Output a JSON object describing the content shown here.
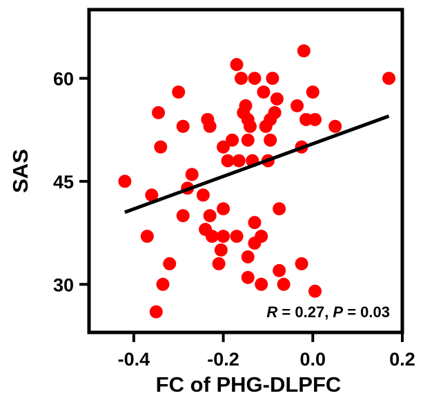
{
  "chart_data": {
    "type": "scatter",
    "xlabel": "FC of PHG-DLPFC",
    "ylabel": "SAS",
    "xlim": [
      -0.5,
      0.2
    ],
    "ylim": [
      23,
      70
    ],
    "xticks": [
      -0.4,
      -0.2,
      0.0,
      0.2
    ],
    "xtick_labels": [
      "-0.4",
      "-0.2",
      "0.0",
      "0.2"
    ],
    "yticks": [
      30,
      45,
      60
    ],
    "ytick_labels": [
      "30",
      "45",
      "60"
    ],
    "grid": false,
    "legend": "none",
    "marker_color": "#ff0000",
    "line_color": "#000000",
    "fit_line": {
      "x": [
        -0.42,
        0.17
      ],
      "y": [
        40.5,
        54.5
      ]
    },
    "annotation": {
      "r_symbol": "R",
      "r_text": " = 0.27, ",
      "p_symbol": "P",
      "p_text": " = 0.03"
    },
    "points": [
      {
        "x": -0.42,
        "y": 45
      },
      {
        "x": -0.36,
        "y": 43
      },
      {
        "x": -0.37,
        "y": 37
      },
      {
        "x": -0.35,
        "y": 26
      },
      {
        "x": -0.345,
        "y": 55
      },
      {
        "x": -0.34,
        "y": 50
      },
      {
        "x": -0.335,
        "y": 30
      },
      {
        "x": -0.32,
        "y": 33
      },
      {
        "x": -0.3,
        "y": 58
      },
      {
        "x": -0.29,
        "y": 53
      },
      {
        "x": -0.29,
        "y": 40
      },
      {
        "x": -0.28,
        "y": 44
      },
      {
        "x": -0.27,
        "y": 46
      },
      {
        "x": -0.245,
        "y": 43
      },
      {
        "x": -0.24,
        "y": 38
      },
      {
        "x": -0.235,
        "y": 54
      },
      {
        "x": -0.23,
        "y": 53
      },
      {
        "x": -0.23,
        "y": 40
      },
      {
        "x": -0.225,
        "y": 37
      },
      {
        "x": -0.21,
        "y": 33
      },
      {
        "x": -0.205,
        "y": 35
      },
      {
        "x": -0.2,
        "y": 41
      },
      {
        "x": -0.2,
        "y": 37
      },
      {
        "x": -0.2,
        "y": 50
      },
      {
        "x": -0.19,
        "y": 48
      },
      {
        "x": -0.18,
        "y": 51
      },
      {
        "x": -0.17,
        "y": 37
      },
      {
        "x": -0.17,
        "y": 62
      },
      {
        "x": -0.165,
        "y": 48
      },
      {
        "x": -0.16,
        "y": 60
      },
      {
        "x": -0.155,
        "y": 55
      },
      {
        "x": -0.15,
        "y": 56
      },
      {
        "x": -0.145,
        "y": 54
      },
      {
        "x": -0.145,
        "y": 51
      },
      {
        "x": -0.14,
        "y": 53
      },
      {
        "x": -0.145,
        "y": 34
      },
      {
        "x": -0.145,
        "y": 31
      },
      {
        "x": -0.135,
        "y": 48
      },
      {
        "x": -0.13,
        "y": 39
      },
      {
        "x": -0.13,
        "y": 36
      },
      {
        "x": -0.13,
        "y": 60
      },
      {
        "x": -0.115,
        "y": 37
      },
      {
        "x": -0.115,
        "y": 30
      },
      {
        "x": -0.11,
        "y": 58
      },
      {
        "x": -0.105,
        "y": 53
      },
      {
        "x": -0.1,
        "y": 48
      },
      {
        "x": -0.095,
        "y": 51
      },
      {
        "x": -0.095,
        "y": 54
      },
      {
        "x": -0.085,
        "y": 55
      },
      {
        "x": -0.09,
        "y": 60
      },
      {
        "x": -0.08,
        "y": 57
      },
      {
        "x": -0.075,
        "y": 41
      },
      {
        "x": -0.075,
        "y": 32
      },
      {
        "x": -0.065,
        "y": 30
      },
      {
        "x": -0.035,
        "y": 56
      },
      {
        "x": -0.025,
        "y": 50
      },
      {
        "x": -0.025,
        "y": 33
      },
      {
        "x": -0.02,
        "y": 64
      },
      {
        "x": -0.015,
        "y": 54
      },
      {
        "x": 0.0,
        "y": 58
      },
      {
        "x": 0.005,
        "y": 54
      },
      {
        "x": 0.005,
        "y": 29
      },
      {
        "x": 0.05,
        "y": 53
      },
      {
        "x": 0.17,
        "y": 60
      }
    ]
  }
}
